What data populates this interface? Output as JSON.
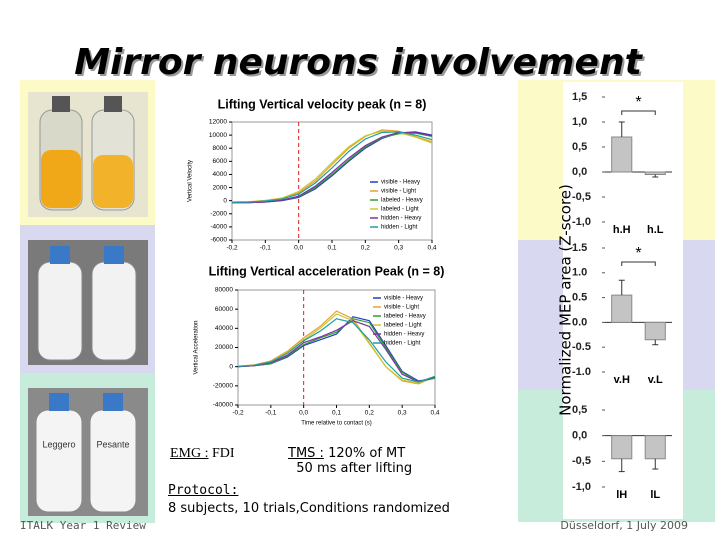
{
  "title": "Mirror neurons involvement",
  "footer": {
    "left": "ITALK Year 1 Review",
    "right": "Düsseldorf, 1 July 2009"
  },
  "notes": {
    "emg": {
      "label": "EMG :",
      "value": "FDI"
    },
    "tms": {
      "label": "TMS :",
      "lines": [
        "120% of MT",
        "50 ms after lifting"
      ]
    },
    "protocol": {
      "label": "Protocol:",
      "text": "8 subjects, 10 trials,Conditions  randomized"
    }
  },
  "photos": {
    "labels": [
      "Leggero",
      "Pesante"
    ]
  },
  "bar_axis_label": "Normalized MEP area (Z-score)",
  "chart_data": [
    {
      "type": "line",
      "title": "Lifting Vertical velocity peak (n = 8)",
      "y_label": "Vertical Velocity",
      "x": [
        -0.2,
        -0.15,
        -0.1,
        -0.05,
        0,
        0.05,
        0.1,
        0.15,
        0.2,
        0.25,
        0.3,
        0.35,
        0.4
      ],
      "xlim": [
        -0.2,
        0.4
      ],
      "xticks": [
        {
          "value": -0.2,
          "label": "-0,2"
        },
        {
          "value": -0.1,
          "label": "-0,1"
        },
        {
          "value": 0,
          "label": "0,0"
        },
        {
          "value": 0.1,
          "label": "0,1"
        },
        {
          "value": 0.2,
          "label": "0,2"
        },
        {
          "value": 0.3,
          "label": "0,3"
        },
        {
          "value": 0.4,
          "label": "0,4"
        }
      ],
      "ylim": [
        -6000,
        12000
      ],
      "yticks": [
        -6000,
        -4000,
        -2000,
        0,
        2000,
        4000,
        6000,
        8000,
        10000,
        12000
      ],
      "legend": "lower right",
      "series": [
        {
          "name": "visible - Heavy",
          "color": "#2040c0",
          "values": [
            -300,
            -300,
            -200,
            0,
            500,
            1800,
            3800,
            6000,
            8000,
            9500,
            10300,
            10500,
            10000
          ]
        },
        {
          "name": "visible - Light",
          "color": "#e8a030",
          "values": [
            -200,
            -200,
            0,
            300,
            1200,
            3000,
            5500,
            8000,
            9800,
            10800,
            10600,
            9800,
            9000
          ]
        },
        {
          "name": "labeled - Heavy",
          "color": "#30a030",
          "values": [
            -300,
            -250,
            -150,
            100,
            600,
            2000,
            4000,
            6200,
            8200,
            9600,
            10200,
            10300,
            9800
          ]
        },
        {
          "name": "labeled - Light",
          "color": "#c8c830",
          "values": [
            -200,
            -150,
            50,
            400,
            1400,
            3300,
            5800,
            8200,
            9900,
            10600,
            10400,
            9700,
            8800
          ]
        },
        {
          "name": "hidden - Heavy",
          "color": "#8030a0",
          "values": [
            -300,
            -300,
            -200,
            50,
            700,
            2200,
            4300,
            6500,
            8400,
            9700,
            10400,
            10400,
            9900
          ]
        },
        {
          "name": "hidden - Light",
          "color": "#20a0a0",
          "values": [
            -250,
            -200,
            -50,
            250,
            1000,
            2700,
            5000,
            7500,
            9400,
            10400,
            10500,
            10000,
            9300
          ]
        }
      ]
    },
    {
      "type": "line",
      "title": "Lifting Vertical acceleration Peak (n = 8)",
      "y_label": "Vertical Acceleration",
      "x_label": "Time relative to contact (s)",
      "x": [
        -0.2,
        -0.15,
        -0.1,
        -0.05,
        0,
        0.05,
        0.1,
        0.15,
        0.2,
        0.25,
        0.3,
        0.35,
        0.4
      ],
      "xlim": [
        -0.2,
        0.4
      ],
      "xticks": [
        {
          "value": -0.2,
          "label": "-0,2"
        },
        {
          "value": -0.1,
          "label": "-0,1"
        },
        {
          "value": 0,
          "label": "0,0"
        },
        {
          "value": 0.1,
          "label": "0,1"
        },
        {
          "value": 0.2,
          "label": "0,2"
        },
        {
          "value": 0.3,
          "label": "0,3"
        },
        {
          "value": 0.4,
          "label": "0,4"
        }
      ],
      "ylim": [
        -40000,
        80000
      ],
      "yticks": [
        -40000,
        -20000,
        0,
        20000,
        40000,
        60000,
        80000
      ],
      "legend": "upper right",
      "series": [
        {
          "name": "visible - Heavy",
          "color": "#2040c0",
          "values": [
            0,
            1000,
            3000,
            10000,
            22000,
            28000,
            34000,
            52000,
            48000,
            22000,
            -5000,
            -15000,
            -12000
          ]
        },
        {
          "name": "visible - Light",
          "color": "#e8a030",
          "values": [
            500,
            2000,
            6000,
            16000,
            30000,
            42000,
            58000,
            50000,
            25000,
            0,
            -15000,
            -18000,
            -10000
          ]
        },
        {
          "name": "labeled - Heavy",
          "color": "#30a030",
          "values": [
            0,
            1000,
            3000,
            11000,
            23000,
            30000,
            36000,
            50000,
            46000,
            20000,
            -6000,
            -16000,
            -12000
          ]
        },
        {
          "name": "labeled - Light",
          "color": "#c8c830",
          "values": [
            500,
            1500,
            5000,
            15000,
            28000,
            40000,
            55000,
            48000,
            24000,
            0,
            -14000,
            -17000,
            -10000
          ]
        },
        {
          "name": "hidden - Heavy",
          "color": "#8030a0",
          "values": [
            0,
            1000,
            4000,
            12000,
            25000,
            31000,
            38000,
            48000,
            42000,
            18000,
            -8000,
            -16000,
            -11000
          ]
        },
        {
          "name": "hidden - Light",
          "color": "#20a0a0",
          "values": [
            300,
            1500,
            5000,
            14000,
            27000,
            37000,
            50000,
            46000,
            28000,
            5000,
            -12000,
            -16000,
            -10000
          ]
        }
      ]
    },
    {
      "type": "bar",
      "categories": [
        "h.H",
        "h.L"
      ],
      "values": [
        0.7,
        -0.05
      ],
      "errors": [
        0.3,
        0.05
      ],
      "color": "#c4c4c4",
      "annotation": "*",
      "ylim": [
        -1,
        1.5
      ],
      "yticks": [
        {
          "value": 1.5,
          "label": "1,5"
        },
        {
          "value": 1,
          "label": "1,0"
        },
        {
          "value": 0.5,
          "label": "0,5"
        },
        {
          "value": 0,
          "label": "0,0"
        },
        {
          "value": -0.5,
          "label": "-0,5"
        },
        {
          "value": -1,
          "label": "-1,0"
        }
      ]
    },
    {
      "type": "bar",
      "categories": [
        "v.H",
        "v.L"
      ],
      "values": [
        0.55,
        -0.35
      ],
      "errors": [
        0.3,
        0.1
      ],
      "color": "#c4c4c4",
      "annotation": "*",
      "ylim": [
        -1,
        1.5
      ],
      "yticks": [
        1.5,
        {
          "value": 1,
          "label": "1.0"
        },
        0.5,
        {
          "value": 0,
          "label": "0.0"
        },
        -0.5,
        {
          "value": -1,
          "label": "-1.0"
        }
      ]
    },
    {
      "type": "bar",
      "categories": [
        "lH",
        "lL"
      ],
      "values": [
        -0.45,
        -0.45
      ],
      "errors": [
        0.25,
        0.2
      ],
      "color": "#c4c4c4",
      "ylim": [
        -1,
        0.5
      ],
      "yticks": [
        {
          "value": 0.5,
          "label": "0,5"
        },
        {
          "value": 0,
          "label": "0,0"
        },
        {
          "value": -0.5,
          "label": "-0,5"
        },
        {
          "value": -1,
          "label": "-1,0"
        }
      ]
    }
  ]
}
